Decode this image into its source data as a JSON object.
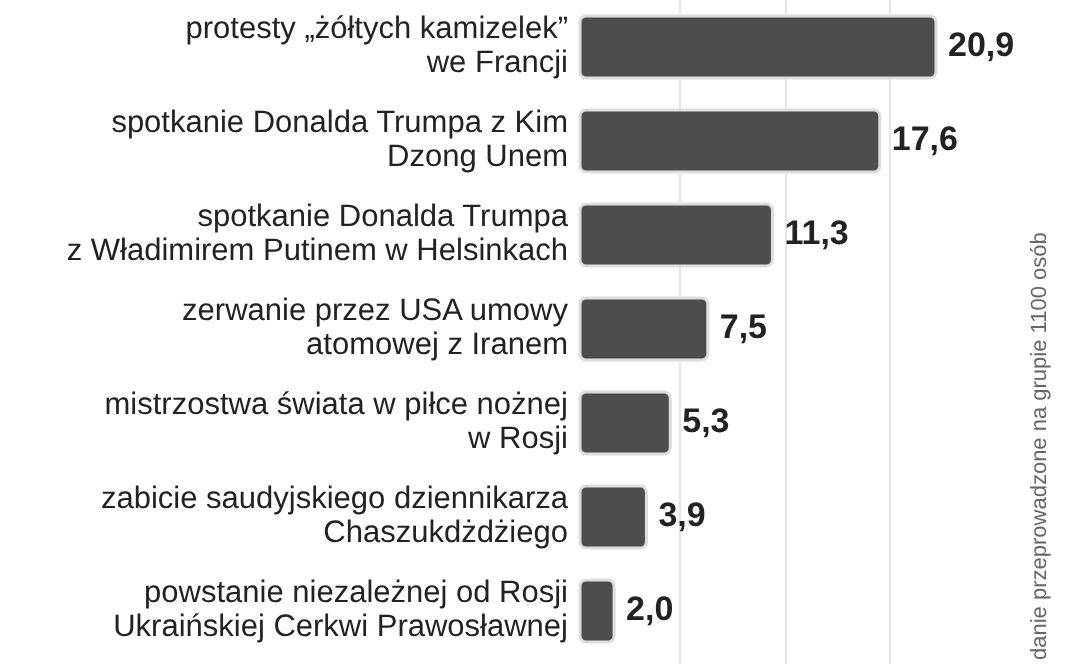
{
  "chart_data": {
    "type": "bar",
    "orientation": "horizontal",
    "categories": [
      "protesty „żółtych kamizelek”\nwe Francji",
      "spotkanie Donalda Trumpa z Kim\nDzong Unem",
      "spotkanie Donalda Trumpa\nz Władimirem Putinem w Helsinkach",
      "zerwanie przez USA umowy\natomowej z Iranem",
      "mistrzostwa świata w piłce nożnej\nw Rosji",
      "zabicie saudyjskiego dziennikarza\nChaszukdżdżiego",
      "powstanie niezależnej od Rosji\nUkraińskiej Cerkwi Prawosławnej"
    ],
    "values": [
      20.9,
      17.6,
      11.3,
      7.5,
      5.3,
      3.9,
      2.0
    ],
    "value_labels": [
      "20,9",
      "17,6",
      "11,3",
      "7,5",
      "5,3",
      "3,9",
      "2,0"
    ],
    "color": "#4d4d4d",
    "annotations": [
      "danie przeprowadzone na grupie 1100 osób"
    ]
  }
}
